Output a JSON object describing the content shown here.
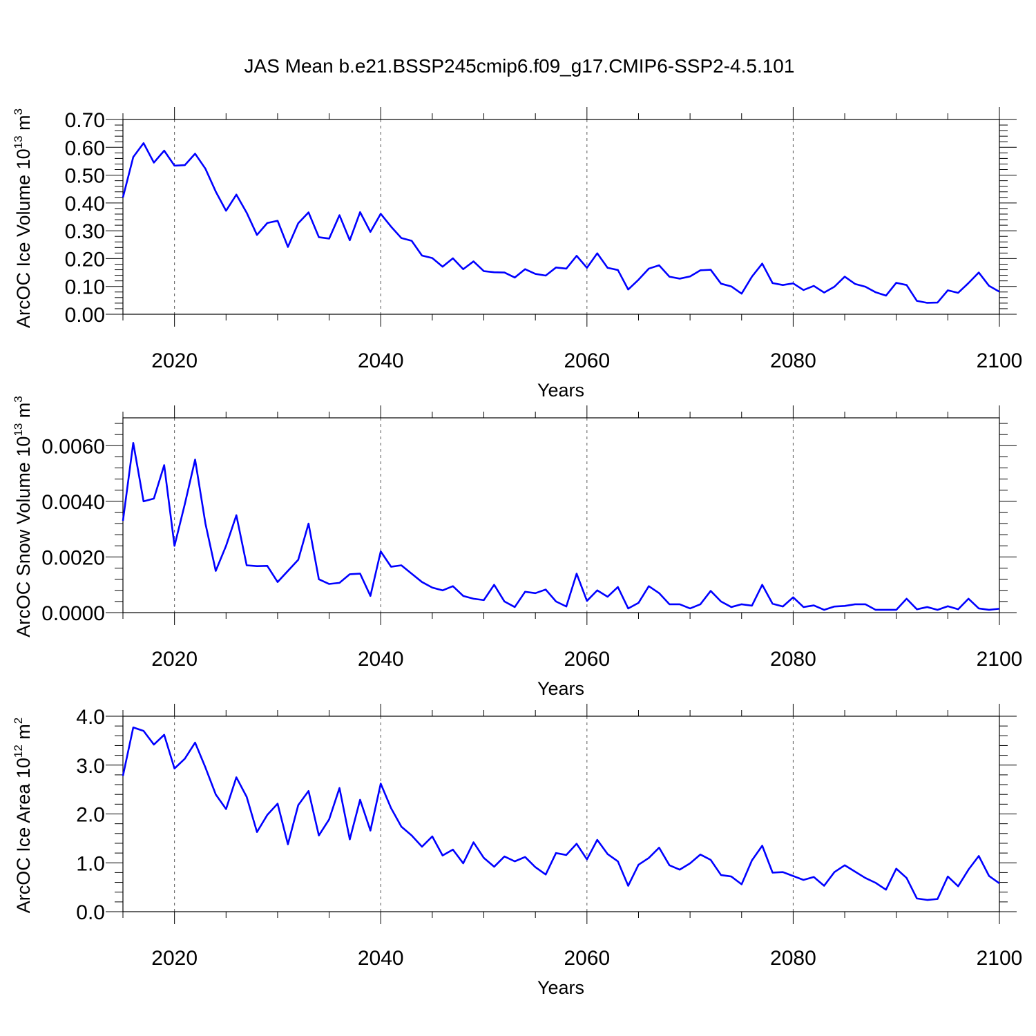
{
  "title": "JAS Mean b.e21.BSSP245cmip6.f09_g17.CMIP6-SSP2-4.5.101",
  "colors": {
    "line": "#0000ff",
    "axis": "#000000",
    "grid": "#555555"
  },
  "chart_data": [
    {
      "type": "line",
      "title": "",
      "xlabel": "Years",
      "ylabel": {
        "prefix": "ArcOC Ice Volume 10",
        "exponent": "13",
        "unit": " m",
        "unit_exp": "3"
      },
      "xlim": [
        2015,
        2100
      ],
      "ylim": [
        0.0,
        0.7
      ],
      "x_ticks": [
        2020,
        2040,
        2060,
        2080,
        2100
      ],
      "y_ticks": [
        "0.00",
        "0.10",
        "0.20",
        "0.30",
        "0.40",
        "0.50",
        "0.60",
        "0.70"
      ],
      "x_start": 2015,
      "series": [
        {
          "name": "ArcOC Ice Volume",
          "values": [
            0.42,
            0.565,
            0.615,
            0.545,
            0.588,
            0.534,
            0.536,
            0.577,
            0.523,
            0.441,
            0.372,
            0.43,
            0.365,
            0.285,
            0.328,
            0.336,
            0.242,
            0.327,
            0.366,
            0.277,
            0.272,
            0.356,
            0.266,
            0.367,
            0.296,
            0.361,
            0.315,
            0.274,
            0.264,
            0.211,
            0.202,
            0.171,
            0.201,
            0.162,
            0.19,
            0.155,
            0.151,
            0.15,
            0.132,
            0.162,
            0.145,
            0.139,
            0.168,
            0.164,
            0.21,
            0.167,
            0.219,
            0.167,
            0.159,
            0.089,
            0.124,
            0.164,
            0.176,
            0.135,
            0.128,
            0.136,
            0.158,
            0.16,
            0.11,
            0.1,
            0.074,
            0.135,
            0.182,
            0.112,
            0.105,
            0.111,
            0.087,
            0.102,
            0.078,
            0.099,
            0.135,
            0.109,
            0.099,
            0.079,
            0.067,
            0.113,
            0.105,
            0.048,
            0.041,
            0.042,
            0.086,
            0.077,
            0.112,
            0.15,
            0.102,
            0.081
          ]
        }
      ]
    },
    {
      "type": "line",
      "title": "",
      "xlabel": "Years",
      "ylabel": {
        "prefix": "ArcOC Snow Volume 10",
        "exponent": "13",
        "unit": " m",
        "unit_exp": "3"
      },
      "xlim": [
        2015,
        2100
      ],
      "ylim": [
        0.0,
        0.007
      ],
      "x_ticks": [
        2020,
        2040,
        2060,
        2080,
        2100
      ],
      "y_ticks": [
        "0.0000",
        "0.0020",
        "0.0040",
        "0.0060"
      ],
      "x_start": 2015,
      "series": [
        {
          "name": "ArcOC Snow Volume",
          "values": [
            0.0033,
            0.0061,
            0.004,
            0.0041,
            0.0053,
            0.0024,
            0.0039,
            0.0055,
            0.0032,
            0.0015,
            0.0024,
            0.0035,
            0.0017,
            0.00167,
            0.00168,
            0.0011,
            0.0015,
            0.0019,
            0.0032,
            0.0012,
            0.00103,
            0.00107,
            0.00138,
            0.0014,
            0.0006,
            0.0022,
            0.00165,
            0.0017,
            0.0014,
            0.0011,
            0.0009,
            0.0008,
            0.00095,
            0.0006,
            0.0005,
            0.00045,
            0.001,
            0.0004,
            0.0002,
            0.00075,
            0.0007,
            0.00083,
            0.0004,
            0.00022,
            0.0014,
            0.00042,
            0.0008,
            0.00057,
            0.00092,
            0.00015,
            0.00035,
            0.00095,
            0.0007,
            0.0003,
            0.0003,
            0.00015,
            0.0003,
            0.00078,
            0.0004,
            0.0002,
            0.0003,
            0.00025,
            0.001,
            0.00032,
            0.00022,
            0.00055,
            0.0002,
            0.00026,
            0.0001,
            0.00022,
            0.00024,
            0.0003,
            0.0003,
            0.0001,
            0.0001,
            0.0001,
            0.0005,
            0.00012,
            0.0002,
            0.0001,
            0.00023,
            0.00012,
            0.0005,
            0.00015,
            0.0001,
            0.00014
          ]
        }
      ]
    },
    {
      "type": "line",
      "title": "",
      "xlabel": "Years",
      "ylabel": {
        "prefix": "ArcOC Ice Area 10",
        "exponent": "12",
        "unit": " m",
        "unit_exp": "2"
      },
      "xlim": [
        2015,
        2100
      ],
      "ylim": [
        0.0,
        4.0
      ],
      "x_ticks": [
        2020,
        2040,
        2060,
        2080,
        2100
      ],
      "y_ticks": [
        "0.0",
        "1.0",
        "2.0",
        "3.0",
        "4.0"
      ],
      "x_start": 2015,
      "series": [
        {
          "name": "ArcOC Ice Area",
          "values": [
            2.78,
            3.77,
            3.7,
            3.42,
            3.62,
            2.93,
            3.13,
            3.46,
            2.95,
            2.4,
            2.1,
            2.75,
            2.35,
            1.63,
            1.98,
            2.21,
            1.38,
            2.18,
            2.47,
            1.56,
            1.89,
            2.53,
            1.48,
            2.29,
            1.66,
            2.62,
            2.12,
            1.74,
            1.56,
            1.33,
            1.54,
            1.15,
            1.27,
            0.99,
            1.42,
            1.1,
            0.92,
            1.13,
            1.03,
            1.12,
            0.91,
            0.76,
            1.2,
            1.16,
            1.39,
            1.07,
            1.47,
            1.18,
            1.03,
            0.53,
            0.96,
            1.1,
            1.31,
            0.95,
            0.86,
            0.99,
            1.17,
            1.06,
            0.75,
            0.72,
            0.56,
            1.05,
            1.35,
            0.8,
            0.81,
            0.73,
            0.65,
            0.71,
            0.53,
            0.81,
            0.95,
            0.82,
            0.69,
            0.59,
            0.45,
            0.88,
            0.69,
            0.27,
            0.24,
            0.26,
            0.72,
            0.52,
            0.86,
            1.14,
            0.73,
            0.58
          ]
        }
      ]
    }
  ]
}
